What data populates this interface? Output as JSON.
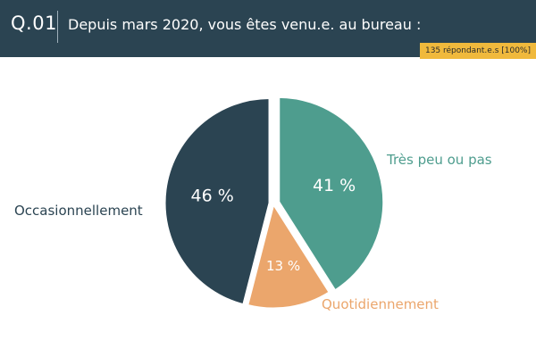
{
  "header": {
    "question_number": "Q.01",
    "question_text": "Depuis mars 2020, vous êtes venu.e. au bureau :",
    "respondents": "135 répondant.e.s  [100%]"
  },
  "chart_data": {
    "type": "pie",
    "title": "",
    "categories": [
      "Très peu ou pas",
      "Quotidiennement",
      "Occasionnellement"
    ],
    "values": [
      41,
      13,
      46
    ],
    "value_labels": [
      "41 %",
      "13 %",
      "46 %"
    ],
    "colors": [
      "#4e9d8e",
      "#eba66c",
      "#2b4452"
    ],
    "label_colors": [
      "#4e9d8e",
      "#eba66c",
      "#2b4452"
    ],
    "start_angle_deg": 0,
    "direction": "clockwise",
    "legend": "labels beside slices"
  }
}
